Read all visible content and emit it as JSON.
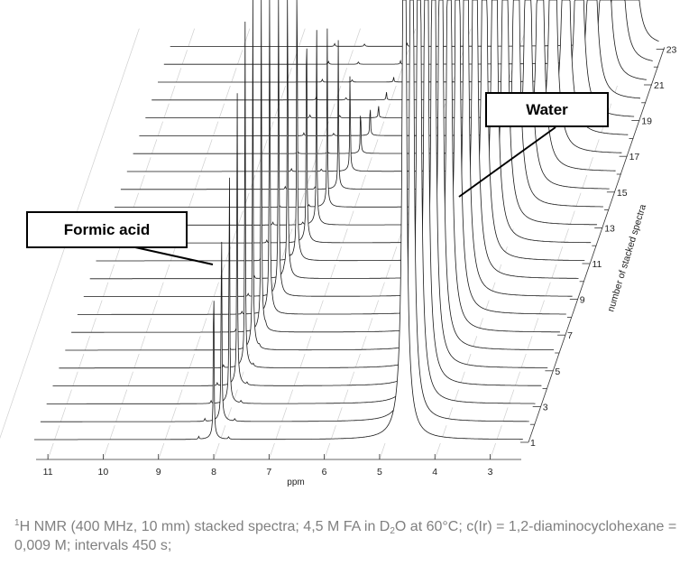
{
  "chart_data": {
    "type": "line",
    "subtype": "stacked-nmr-spectra",
    "xlabel": "ppm",
    "xaxis_reversed": true,
    "xlim": [
      11.6,
      2.5
    ],
    "x_ticks": [
      11,
      10,
      9,
      8,
      7,
      6,
      5,
      4,
      3
    ],
    "zlabel": "number of stacked spectra",
    "z_ticks": [
      1,
      3,
      5,
      7,
      9,
      11,
      13,
      15,
      17,
      19,
      21,
      23
    ],
    "n_spectra": 23,
    "grid": true,
    "peaks": {
      "water_ppm": [
        4.6,
        4.58,
        4.56,
        4.54,
        4.52,
        4.5,
        4.46,
        4.42,
        4.38,
        4.33,
        4.27,
        4.2,
        4.12,
        4.03,
        3.93,
        3.82,
        3.7,
        3.58,
        3.45,
        3.33,
        3.2,
        3.08,
        2.96
      ],
      "formic_ppm": [
        8.05,
        8.02,
        7.99,
        7.96,
        7.93,
        7.9,
        7.86,
        7.82,
        7.77,
        7.72,
        7.66,
        7.6,
        7.53,
        7.45,
        7.36,
        7.26,
        7.18,
        7.12,
        7.08,
        7.05,
        7.03,
        7.02,
        7.01
      ],
      "formic_height": [
        1.1,
        1.3,
        1.5,
        1.8,
        2.0,
        2.3,
        2.5,
        2.6,
        2.5,
        2.3,
        2.1,
        1.6,
        1.3,
        1.0,
        0.8,
        0.6,
        0.3,
        0.2,
        0.08,
        0.05,
        0.03,
        0.02,
        0.02
      ]
    },
    "annotations": [
      {
        "label": "Formic acid"
      },
      {
        "label": "Water"
      }
    ]
  },
  "labels": {
    "formic": "Formic acid",
    "water": "Water",
    "ppm": "ppm",
    "zaxis": "number of stacked spectra"
  },
  "caption": {
    "sup1": "1",
    "part1": "H NMR (400 MHz, 10 mm) stacked spectra; 4,5 M FA in D",
    "sub2": "2",
    "part2": "O at 60°C; c(Ir) = 1,2-diaminocyclohexane = 0,009 M; intervals 450 s;"
  }
}
